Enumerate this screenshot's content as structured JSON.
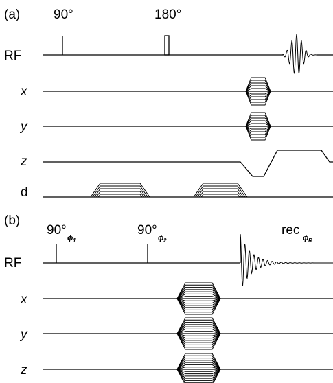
{
  "panel_a": {
    "label": "(a)",
    "pulse_90": "90°",
    "pulse_180": "180°",
    "rows": {
      "rf": "RF",
      "x": "x",
      "y": "y",
      "z": "z",
      "d": "d"
    }
  },
  "panel_b": {
    "label": "(b)",
    "pulse_1_base": "90°",
    "pulse_1_sub": "ϕ",
    "pulse_1_subsub": "1",
    "pulse_2_base": "90°",
    "pulse_2_sub": "ϕ",
    "pulse_2_subsub": "2",
    "receiver_base": "rec",
    "receiver_sub": "ϕ",
    "receiver_subsub": "R",
    "rows": {
      "rf": "RF",
      "x": "x",
      "y": "y",
      "z": "z"
    }
  }
}
